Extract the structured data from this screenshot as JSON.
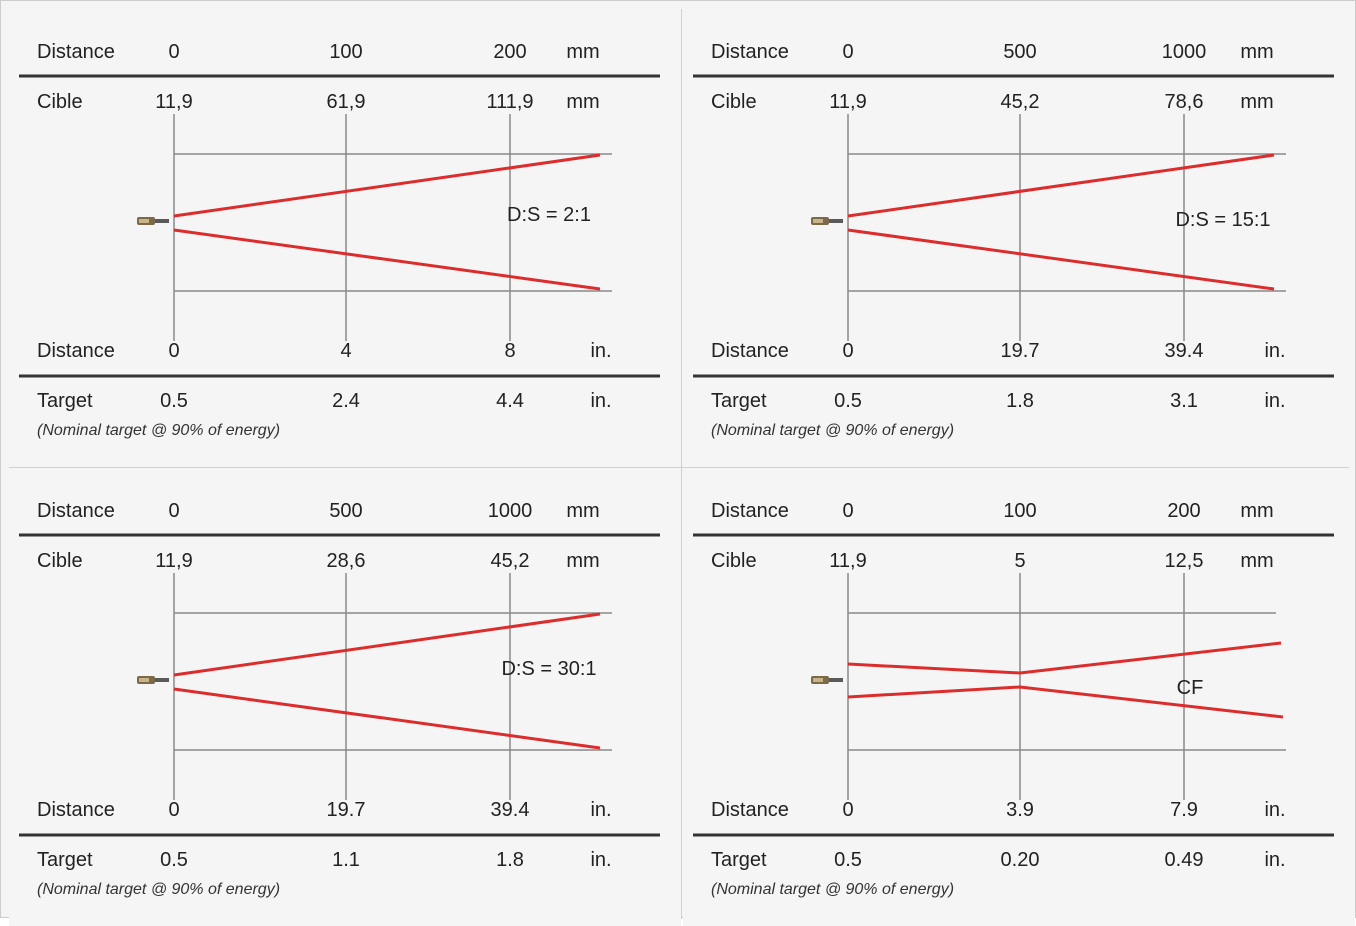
{
  "colors": {
    "beam": "#dd2c2c",
    "grid_line": "#8a8a8a",
    "rule": "#333333",
    "background": "#f5f5f5"
  },
  "panels": [
    {
      "distance_mm_label": "Distance",
      "distance_mm_ticks": [
        "0",
        "100",
        "200"
      ],
      "distance_mm_unit": "mm",
      "target_mm_label": "Cible",
      "target_mm_values": [
        "11,9",
        "61,9",
        "111,9"
      ],
      "target_mm_unit": "mm",
      "ratio_label": "D:S = 2:1",
      "sensor_icon": "ir-sensor-icon",
      "distance_in_label": "Distance",
      "distance_in_ticks": [
        "0",
        "4",
        "8"
      ],
      "distance_in_unit": "in.",
      "target_in_label": "Target",
      "target_in_values": [
        "0.5",
        "2.4",
        "4.4"
      ],
      "target_in_unit": "in.",
      "note": "(Nominal target @ 90% of energy)"
    },
    {
      "distance_mm_label": "Distance",
      "distance_mm_ticks": [
        "0",
        "500",
        "1000"
      ],
      "distance_mm_unit": "mm",
      "target_mm_label": "Cible",
      "target_mm_values": [
        "11,9",
        "45,2",
        "78,6"
      ],
      "target_mm_unit": "mm",
      "ratio_label": "D:S = 15:1",
      "sensor_icon": "ir-sensor-icon",
      "distance_in_label": "Distance",
      "distance_in_ticks": [
        "0",
        "19.7",
        "39.4"
      ],
      "distance_in_unit": "in.",
      "target_in_label": "Target",
      "target_in_values": [
        "0.5",
        "1.8",
        "3.1"
      ],
      "target_in_unit": "in.",
      "note": "(Nominal target @ 90% of energy)"
    },
    {
      "distance_mm_label": "Distance",
      "distance_mm_ticks": [
        "0",
        "500",
        "1000"
      ],
      "distance_mm_unit": "mm",
      "target_mm_label": "Cible",
      "target_mm_values": [
        "11,9",
        "28,6",
        "45,2"
      ],
      "target_mm_unit": "mm",
      "ratio_label": "D:S = 30:1",
      "sensor_icon": "ir-sensor-icon",
      "distance_in_label": "Distance",
      "distance_in_ticks": [
        "0",
        "19.7",
        "39.4"
      ],
      "distance_in_unit": "in.",
      "target_in_label": "Target",
      "target_in_values": [
        "0.5",
        "1.1",
        "1.8"
      ],
      "target_in_unit": "in.",
      "note": "(Nominal target @ 90% of energy)"
    },
    {
      "distance_mm_label": "Distance",
      "distance_mm_ticks": [
        "0",
        "100",
        "200"
      ],
      "distance_mm_unit": "mm",
      "target_mm_label": "Cible",
      "target_mm_values": [
        "11,9",
        "5",
        "12,5"
      ],
      "target_mm_unit": "mm",
      "ratio_label": "CF",
      "sensor_icon": "ir-sensor-icon",
      "distance_in_label": "Distance",
      "distance_in_ticks": [
        "0",
        "3.9",
        "7.9"
      ],
      "distance_in_unit": "in.",
      "target_in_label": "Target",
      "target_in_values": [
        "0.5",
        "0.20",
        "0.49"
      ],
      "target_in_unit": "in.",
      "note": "(Nominal target @ 90% of energy)"
    }
  ]
}
